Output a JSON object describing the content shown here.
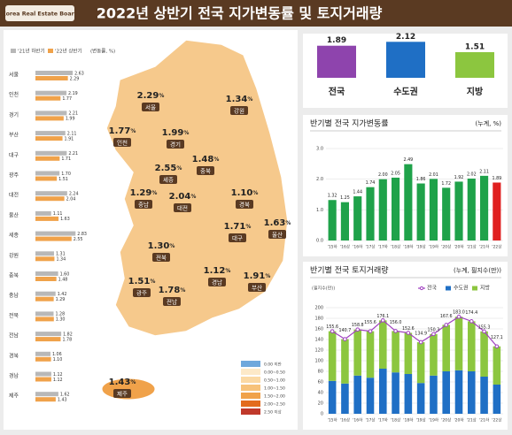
{
  "header": {
    "logo": "Korea Real Estate Board",
    "title": "2022년 상반기 전국 지가변동률 및 토지거래량"
  },
  "regions": {
    "legend": [
      "'21년 하반기",
      "'22년 상반기"
    ],
    "unit_note": "(변동률, %)",
    "colors": [
      "#b8b8b8",
      "#f0a24a"
    ],
    "names": [
      "서울",
      "인천",
      "경기",
      "부산",
      "대구",
      "광주",
      "대전",
      "울산",
      "세종",
      "강원",
      "충북",
      "충남",
      "전북",
      "전남",
      "경북",
      "경남",
      "제주"
    ],
    "h2_2021": [
      2.63,
      2.19,
      2.21,
      2.11,
      2.21,
      1.7,
      2.24,
      1.11,
      2.83,
      1.31,
      1.6,
      1.42,
      1.28,
      1.82,
      1.06,
      1.12,
      1.62
    ],
    "h2_2021_labels": [
      "2.63",
      "2.19",
      "2.21",
      "2.11",
      "2.21",
      "1.70",
      "2.24",
      "1.11",
      "2.83",
      "1.31",
      "1.60",
      "1.42",
      "1.28",
      "1.82",
      "1.06",
      "1.12",
      "1.62"
    ],
    "h1_2022": [
      2.29,
      1.77,
      1.99,
      1.91,
      1.71,
      1.51,
      2.04,
      1.63,
      2.55,
      1.34,
      1.48,
      1.29,
      1.3,
      1.78,
      1.1,
      1.12,
      1.43
    ],
    "h1_2022_labels": [
      "2.29",
      "1.77",
      "1.99",
      "1.91",
      "1.71",
      "1.51",
      "2.04",
      "1.63",
      "2.55",
      "1.34",
      "1.48",
      "1.29",
      "1.30",
      "1.78",
      "1.10",
      "1.12",
      "1.43"
    ]
  },
  "map": {
    "unit": "%",
    "labels": [
      {
        "name": "서울",
        "value": 2.29,
        "value_label": "2.29"
      },
      {
        "name": "인천",
        "value": 1.77,
        "value_label": "1.77"
      },
      {
        "name": "경기",
        "value": 1.99,
        "value_label": "1.99"
      },
      {
        "name": "강원",
        "value": 1.34,
        "value_label": "1.34"
      },
      {
        "name": "세종",
        "value": 2.55,
        "value_label": "2.55"
      },
      {
        "name": "충북",
        "value": 1.48,
        "value_label": "1.48"
      },
      {
        "name": "충남",
        "value": 1.29,
        "value_label": "1.29"
      },
      {
        "name": "대전",
        "value": 2.04,
        "value_label": "2.04"
      },
      {
        "name": "경북",
        "value": 1.1,
        "value_label": "1.10"
      },
      {
        "name": "대구",
        "value": 1.71,
        "value_label": "1.71"
      },
      {
        "name": "전북",
        "value": 1.3,
        "value_label": "1.30"
      },
      {
        "name": "울산",
        "value": 1.63,
        "value_label": "1.63"
      },
      {
        "name": "광주",
        "value": 1.51,
        "value_label": "1.51"
      },
      {
        "name": "전남",
        "value": 1.78,
        "value_label": "1.78"
      },
      {
        "name": "경남",
        "value": 1.12,
        "value_label": "1.12"
      },
      {
        "name": "부산",
        "value": 1.91,
        "value_label": "1.91"
      },
      {
        "name": "제주",
        "value": 1.43,
        "value_label": "1.43"
      }
    ],
    "legend": {
      "colors": [
        "#6fa8dc",
        "#fde9c8",
        "#fbd9a4",
        "#f7c27a",
        "#f0a24a",
        "#e36b1e",
        "#c0392b"
      ],
      "labels": [
        "0.00 미만",
        "0.00~0.50",
        "0.50~1.00",
        "1.00~1.50",
        "1.50~2.00",
        "2.00~2.50",
        "2.50 이상"
      ]
    }
  },
  "summary": {
    "categories": [
      "전국",
      "수도권",
      "지방"
    ],
    "values": [
      1.89,
      2.12,
      1.51
    ],
    "colors": [
      "#8e44ad",
      "#1f6fc5",
      "#8cc63f"
    ]
  },
  "rate_chart": {
    "type": "bar",
    "title": "반기별 전국 지가변동률",
    "unit": "(누계, %)",
    "categories": [
      "'15하",
      "'16상",
      "'16하",
      "'17상",
      "'17하",
      "'18상",
      "'18하",
      "'19상",
      "'19하",
      "'20상",
      "'20하",
      "'21상",
      "'21하",
      "'22상"
    ],
    "values": [
      1.32,
      1.25,
      1.44,
      1.74,
      2.0,
      2.05,
      2.49,
      1.86,
      2.01,
      1.72,
      1.92,
      2.02,
      2.11,
      1.89
    ],
    "value_labels": [
      "1.32",
      "1.25",
      "1.44",
      "1.74",
      "2.00",
      "2.05",
      "2.49",
      "1.86",
      "2.01",
      "1.72",
      "1.92",
      "2.02",
      "2.11",
      "1.89"
    ],
    "colors": [
      "#1fa24a",
      "#1fa24a",
      "#1fa24a",
      "#1fa24a",
      "#1fa24a",
      "#1fa24a",
      "#1fa24a",
      "#1fa24a",
      "#1fa24a",
      "#1fa24a",
      "#1fa24a",
      "#1fa24a",
      "#1fa24a",
      "#e02020"
    ],
    "ylim": [
      0,
      3
    ],
    "yticks": [
      {
        "value": 0,
        "label": "0.0"
      },
      {
        "value": 1,
        "label": "1.0"
      },
      {
        "value": 2,
        "label": "2.0"
      },
      {
        "value": 3,
        "label": "3.0"
      }
    ]
  },
  "volume_chart": {
    "type": "bar",
    "title": "반기별 전국 토지거래량",
    "unit": "(누계, 필지수(만))",
    "axis_label": "(필지수(만))",
    "categories": [
      "'15하",
      "'16상",
      "'16하",
      "'17상",
      "'17하",
      "'18상",
      "'18하",
      "'19상",
      "'19하",
      "'20상",
      "'20하",
      "'21상",
      "'21하",
      "'22상"
    ],
    "series": [
      {
        "name": "전국",
        "color": "#a040c0",
        "values": [
          155.6,
          140.7,
          158.8,
          155.6,
          176.1,
          156.0,
          152.6,
          134.9,
          150.3,
          167.6,
          183.0,
          174.4,
          155.3,
          127.1
        ],
        "value_labels": [
          "155.6",
          "140.7",
          "158.8",
          "155.6",
          "176.1",
          "156.0",
          "152.6",
          "134.9",
          "150.3",
          "167.6",
          "183.0",
          "174.4",
          "155.3",
          "127.1"
        ]
      },
      {
        "name": "수도권",
        "color": "#1f6fc5",
        "values": [
          62,
          57,
          72,
          68,
          85,
          78,
          75,
          58,
          72,
          80,
          82,
          80,
          70,
          55
        ]
      },
      {
        "name": "지방",
        "color": "#8cc63f",
        "values": [
          93.6,
          83.7,
          86.8,
          87.6,
          91.1,
          78.0,
          77.6,
          76.9,
          78.3,
          87.6,
          101.0,
          94.4,
          85.3,
          72.1
        ]
      }
    ],
    "ylim": [
      0,
      200
    ],
    "yticks": [
      0,
      20,
      40,
      60,
      80,
      100,
      120,
      140,
      160,
      180,
      200
    ]
  }
}
